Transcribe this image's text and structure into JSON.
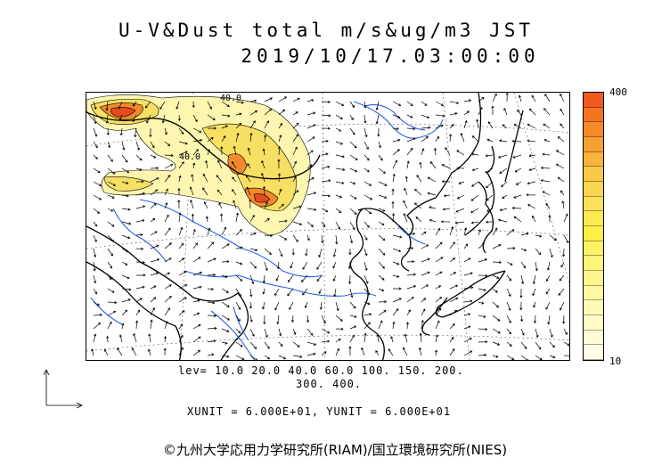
{
  "header": {
    "title": "U-V&Dust total m/s&ug/m3 JST",
    "datetime": "2019/10/17.03:00:00"
  },
  "colorbar": {
    "max_label": "400",
    "min_label": "10",
    "colors": [
      "#f05a1e",
      "#f4741e",
      "#f58a28",
      "#f7a032",
      "#f8b43c",
      "#f9c846",
      "#fad650",
      "#fbe15a",
      "#fbeb50",
      "#fcf046",
      "#fcf264",
      "#fdf47a",
      "#fdf68e",
      "#fdf8a2",
      "#fef9b4",
      "#fefbc6",
      "#fefcd6",
      "#fffde6"
    ]
  },
  "footer": {
    "lev_line1": "lev= 10.0 20.0 40.0 60.0 100. 150. 200.",
    "lev_line2": "300. 400.",
    "units": "XUNIT = 6.000E+01, YUNIT = 6.000E+01",
    "copyright": "©九州大学応用力学研究所(RIAM)/国立環境研究所(NIES)"
  },
  "map": {
    "contour_labels": [
      "40.0",
      "40.0"
    ],
    "colors": {
      "coast": "#000000",
      "river": "#2a5ee8",
      "dust_low": "#fdf6b0",
      "dust_mid": "#f6df63",
      "dust_high": "#f08a2c",
      "dust_peak": "#e8481c"
    }
  }
}
